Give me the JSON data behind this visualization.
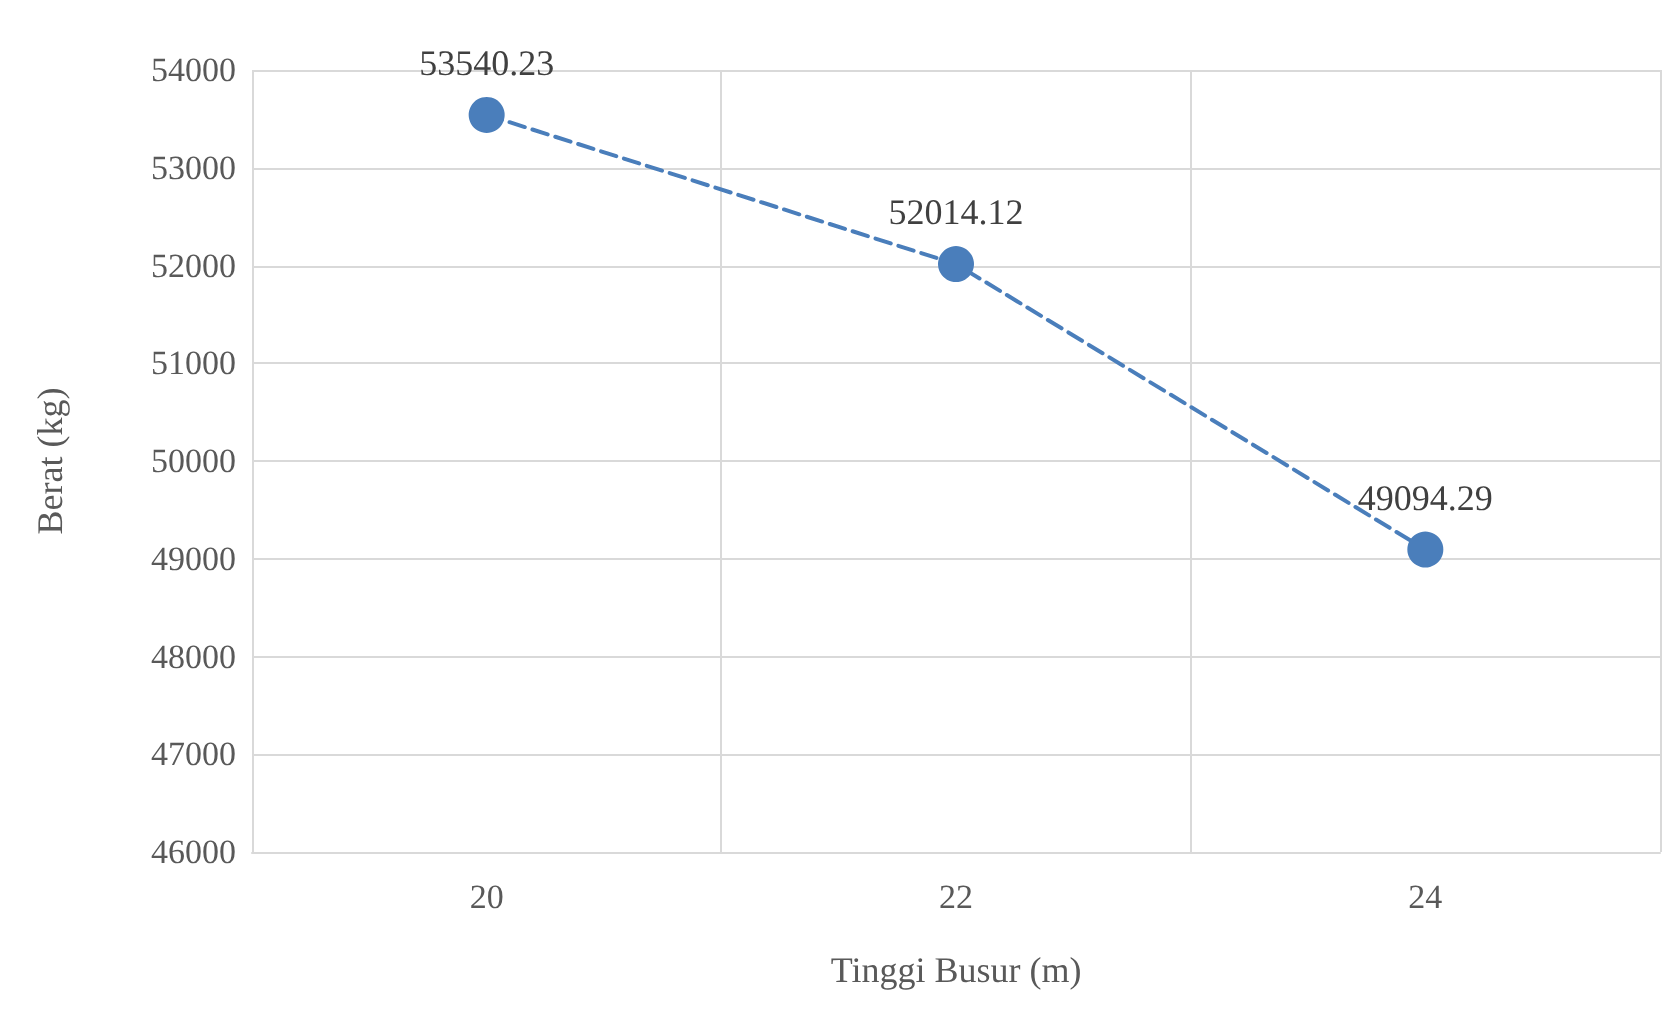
{
  "chart_data": {
    "type": "line",
    "xlabel": "Tinggi Busur (m)",
    "ylabel": "Berat (kg)",
    "categories": [
      "20",
      "22",
      "24"
    ],
    "series": [
      {
        "color": "#4a7ebb",
        "values": [
          53540.23,
          52014.12,
          49094.29
        ]
      }
    ],
    "ylim": [
      46000,
      54000
    ],
    "yticks": [
      46000,
      47000,
      48000,
      49000,
      50000,
      51000,
      52000,
      53000,
      54000
    ],
    "grid": true,
    "marker": "circle",
    "line_style": "dashed",
    "data_labels": true
  }
}
